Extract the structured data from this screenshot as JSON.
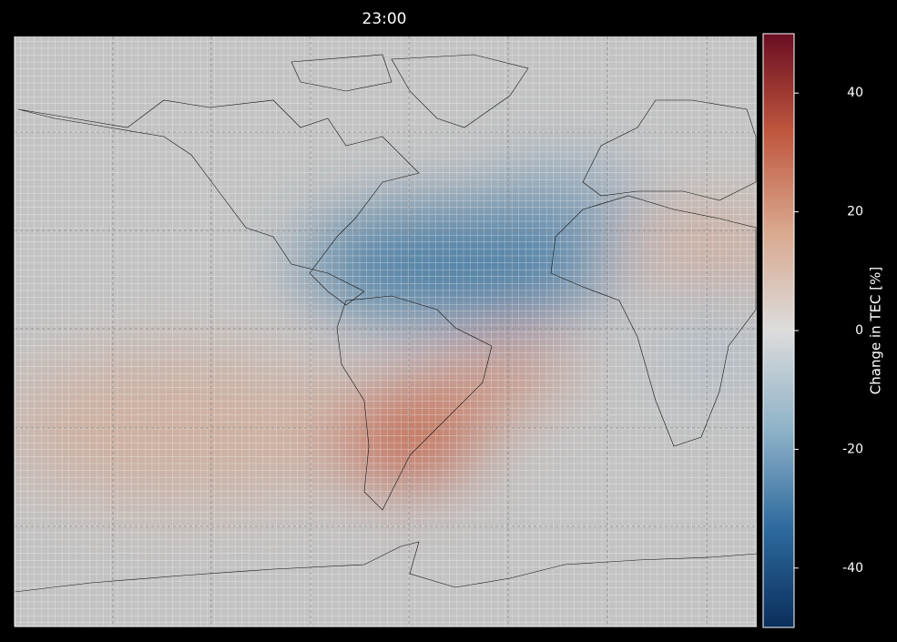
{
  "title": "23:00",
  "colorbar": {
    "label": "Change in TEC [%]",
    "lim": [
      -50,
      50
    ],
    "ticks": [
      -40,
      -20,
      0,
      20,
      40
    ],
    "colors": [
      "#0a2e5c",
      "#2e6a9e",
      "#8fb2c8",
      "#dcdcdc",
      "#d9a88e",
      "#c0573e",
      "#6a0d22"
    ]
  }
}
